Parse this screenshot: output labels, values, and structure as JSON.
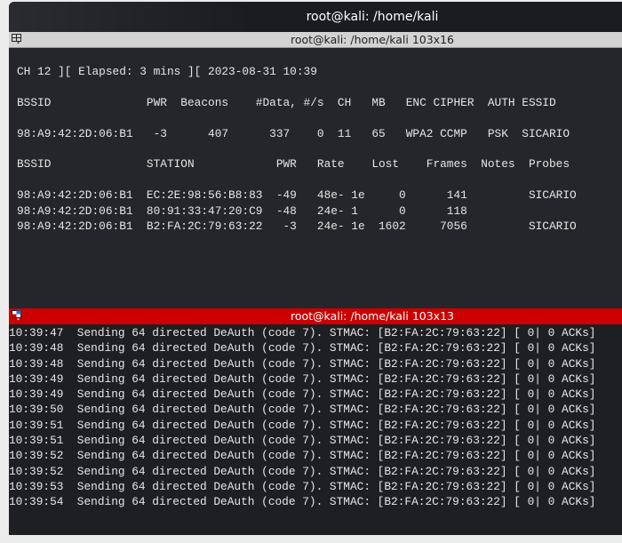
{
  "window": {
    "title": "root@kali: /home/kali"
  },
  "top_pane": {
    "title": "root@kali: /home/kali 103x16",
    "lines": [
      "CH 12 ][ Elapsed: 3 mins ][ 2023-08-31 10:39",
      "",
      "BSSID              PWR  Beacons    #Data, #/s  CH   MB   ENC CIPHER  AUTH ESSID",
      "",
      "98:A9:42:2D:06:B1   -3      407      337    0  11   65   WPA2 CCMP   PSK  SICARIO",
      "",
      "BSSID              STATION            PWR   Rate    Lost    Frames  Notes  Probes",
      "",
      "98:A9:42:2D:06:B1  EC:2E:98:56:B8:83  -49   48e- 1e     0      141         SICARIO",
      "98:A9:42:2D:06:B1  80:91:33:47:20:C9  -48   24e- 1      0      118",
      "98:A9:42:2D:06:B1  B2:FA:2C:79:63:22   -3   24e- 1e  1602     7056         SICARIO"
    ]
  },
  "bottom_pane": {
    "title": "root@kali: /home/kali 103x13",
    "accent": "#cc0000",
    "lines": [
      "10:39:47  Sending 64 directed DeAuth (code 7). STMAC: [B2:FA:2C:79:63:22] [ 0| 0 ACKs]",
      "10:39:48  Sending 64 directed DeAuth (code 7). STMAC: [B2:FA:2C:79:63:22] [ 0| 0 ACKs]",
      "10:39:48  Sending 64 directed DeAuth (code 7). STMAC: [B2:FA:2C:79:63:22] [ 0| 0 ACKs]",
      "10:39:49  Sending 64 directed DeAuth (code 7). STMAC: [B2:FA:2C:79:63:22] [ 0| 0 ACKs]",
      "10:39:49  Sending 64 directed DeAuth (code 7). STMAC: [B2:FA:2C:79:63:22] [ 0| 0 ACKs]",
      "10:39:50  Sending 64 directed DeAuth (code 7). STMAC: [B2:FA:2C:79:63:22] [ 0| 0 ACKs]",
      "10:39:51  Sending 64 directed DeAuth (code 7). STMAC: [B2:FA:2C:79:63:22] [ 0| 0 ACKs]",
      "10:39:51  Sending 64 directed DeAuth (code 7). STMAC: [B2:FA:2C:79:63:22] [ 0| 0 ACKs]",
      "10:39:52  Sending 64 directed DeAuth (code 7). STMAC: [B2:FA:2C:79:63:22] [ 0| 0 ACKs]",
      "10:39:52  Sending 64 directed DeAuth (code 7). STMAC: [B2:FA:2C:79:63:22] [ 0| 0 ACKs]",
      "10:39:53  Sending 64 directed DeAuth (code 7). STMAC: [B2:FA:2C:79:63:22] [ 0| 0 ACKs]",
      "10:39:54  Sending 64 directed DeAuth (code 7). STMAC: [B2:FA:2C:79:63:22] [ 0| 0 ACKs]"
    ]
  }
}
